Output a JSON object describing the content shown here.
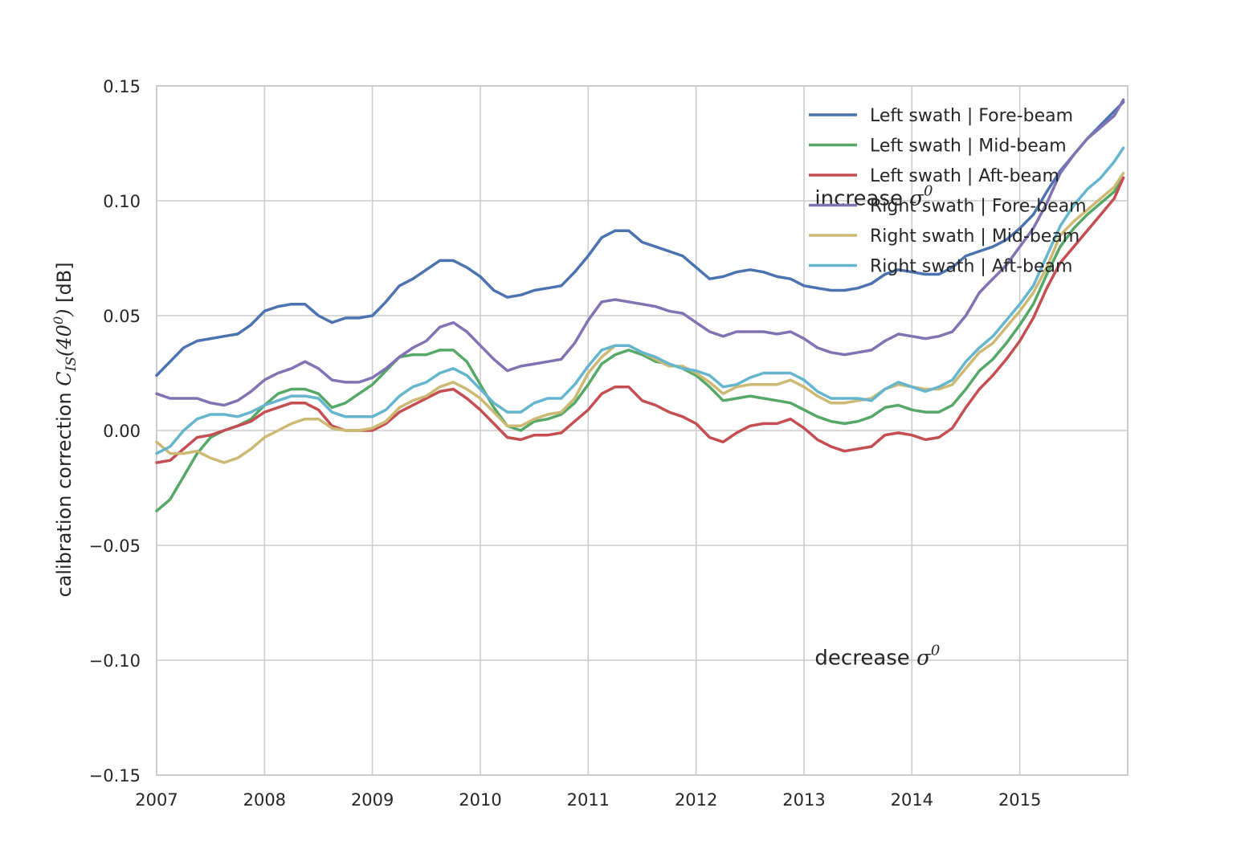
{
  "chart_data": {
    "type": "line",
    "ylabel": {
      "prefix": "calibration correction ",
      "symbol": "C",
      "subscript": "IS",
      "argument": "(40",
      "argument_superscript": "0",
      "argument_close": ")",
      "unit": " [dB]"
    },
    "xlim": [
      2007.0,
      2016.0
    ],
    "ylim": [
      -0.15,
      0.15
    ],
    "x_ticks": [
      2007,
      2008,
      2009,
      2010,
      2011,
      2012,
      2013,
      2014,
      2015
    ],
    "x_tick_labels": [
      "2007",
      "2008",
      "2009",
      "2010",
      "2011",
      "2012",
      "2013",
      "2014",
      "2015"
    ],
    "y_ticks": [
      -0.15,
      -0.1,
      -0.05,
      0.0,
      0.05,
      0.1,
      0.15
    ],
    "y_tick_labels": [
      "−0.15",
      "−0.10",
      "−0.05",
      "0.00",
      "0.05",
      "0.10",
      "0.15"
    ],
    "grid": true,
    "legend_position": "top-right",
    "x": [
      2007.0,
      2007.125,
      2007.25,
      2007.375,
      2007.5,
      2007.625,
      2007.75,
      2007.875,
      2008.0,
      2008.125,
      2008.25,
      2008.375,
      2008.5,
      2008.625,
      2008.75,
      2008.875,
      2009.0,
      2009.125,
      2009.25,
      2009.375,
      2009.5,
      2009.625,
      2009.75,
      2009.875,
      2010.0,
      2010.125,
      2010.25,
      2010.375,
      2010.5,
      2010.625,
      2010.75,
      2010.875,
      2011.0,
      2011.125,
      2011.25,
      2011.375,
      2011.5,
      2011.625,
      2011.75,
      2011.875,
      2012.0,
      2012.125,
      2012.25,
      2012.375,
      2012.5,
      2012.625,
      2012.75,
      2012.875,
      2013.0,
      2013.125,
      2013.25,
      2013.375,
      2013.5,
      2013.625,
      2013.75,
      2013.875,
      2014.0,
      2014.125,
      2014.25,
      2014.375,
      2014.5,
      2014.625,
      2014.75,
      2014.875,
      2015.0,
      2015.125,
      2015.25,
      2015.375,
      2015.5,
      2015.625,
      2015.75,
      2015.875,
      2015.96
    ],
    "series": [
      {
        "name": "Left swath | Fore-beam",
        "color": "#4c72b0",
        "values": [
          0.024,
          0.03,
          0.036,
          0.039,
          0.04,
          0.041,
          0.042,
          0.046,
          0.052,
          0.054,
          0.055,
          0.055,
          0.05,
          0.047,
          0.049,
          0.049,
          0.05,
          0.056,
          0.063,
          0.066,
          0.07,
          0.074,
          0.074,
          0.071,
          0.067,
          0.061,
          0.058,
          0.059,
          0.061,
          0.062,
          0.063,
          0.069,
          0.076,
          0.084,
          0.087,
          0.087,
          0.082,
          0.08,
          0.078,
          0.076,
          0.071,
          0.066,
          0.067,
          0.069,
          0.07,
          0.069,
          0.067,
          0.066,
          0.063,
          0.062,
          0.061,
          0.061,
          0.062,
          0.064,
          0.068,
          0.07,
          0.069,
          0.068,
          0.068,
          0.071,
          0.076,
          0.078,
          0.08,
          0.083,
          0.088,
          0.094,
          0.104,
          0.113,
          0.12,
          0.127,
          0.133,
          0.139,
          0.143
        ]
      },
      {
        "name": "Left swath | Mid-beam",
        "color": "#55a868",
        "values": [
          -0.035,
          -0.03,
          -0.02,
          -0.01,
          -0.003,
          0.0,
          0.002,
          0.005,
          0.011,
          0.016,
          0.018,
          0.018,
          0.016,
          0.01,
          0.012,
          0.016,
          0.02,
          0.026,
          0.032,
          0.033,
          0.033,
          0.035,
          0.035,
          0.03,
          0.02,
          0.01,
          0.002,
          0.0,
          0.004,
          0.005,
          0.007,
          0.012,
          0.02,
          0.029,
          0.033,
          0.035,
          0.033,
          0.03,
          0.029,
          0.027,
          0.024,
          0.019,
          0.013,
          0.014,
          0.015,
          0.014,
          0.013,
          0.012,
          0.009,
          0.006,
          0.004,
          0.003,
          0.004,
          0.006,
          0.01,
          0.011,
          0.009,
          0.008,
          0.008,
          0.011,
          0.018,
          0.026,
          0.031,
          0.038,
          0.046,
          0.055,
          0.068,
          0.08,
          0.088,
          0.094,
          0.099,
          0.104,
          0.11
        ]
      },
      {
        "name": "Left swath | Aft-beam",
        "color": "#c44e52",
        "values": [
          -0.014,
          -0.013,
          -0.008,
          -0.003,
          -0.002,
          0.0,
          0.002,
          0.004,
          0.008,
          0.01,
          0.012,
          0.012,
          0.009,
          0.002,
          0.0,
          0.0,
          0.0,
          0.003,
          0.008,
          0.011,
          0.014,
          0.017,
          0.018,
          0.014,
          0.009,
          0.003,
          -0.003,
          -0.004,
          -0.002,
          -0.002,
          -0.001,
          0.004,
          0.009,
          0.016,
          0.019,
          0.019,
          0.013,
          0.011,
          0.008,
          0.006,
          0.003,
          -0.003,
          -0.005,
          -0.001,
          0.002,
          0.003,
          0.003,
          0.005,
          0.001,
          -0.004,
          -0.007,
          -0.009,
          -0.008,
          -0.007,
          -0.002,
          -0.001,
          -0.002,
          -0.004,
          -0.003,
          0.001,
          0.01,
          0.018,
          0.024,
          0.031,
          0.039,
          0.049,
          0.062,
          0.073,
          0.08,
          0.087,
          0.094,
          0.101,
          0.11
        ]
      },
      {
        "name": "Right swath | Fore-beam",
        "color": "#8172b2",
        "values": [
          0.016,
          0.014,
          0.014,
          0.014,
          0.012,
          0.011,
          0.013,
          0.017,
          0.022,
          0.025,
          0.027,
          0.03,
          0.027,
          0.022,
          0.021,
          0.021,
          0.023,
          0.027,
          0.032,
          0.036,
          0.039,
          0.045,
          0.047,
          0.043,
          0.037,
          0.031,
          0.026,
          0.028,
          0.029,
          0.03,
          0.031,
          0.038,
          0.048,
          0.056,
          0.057,
          0.056,
          0.055,
          0.054,
          0.052,
          0.051,
          0.047,
          0.043,
          0.041,
          0.043,
          0.043,
          0.043,
          0.042,
          0.043,
          0.04,
          0.036,
          0.034,
          0.033,
          0.034,
          0.035,
          0.039,
          0.042,
          0.041,
          0.04,
          0.041,
          0.043,
          0.05,
          0.06,
          0.066,
          0.072,
          0.08,
          0.088,
          0.099,
          0.112,
          0.12,
          0.127,
          0.132,
          0.137,
          0.144
        ]
      },
      {
        "name": "Right swath | Mid-beam",
        "color": "#ccb974",
        "values": [
          -0.005,
          -0.01,
          -0.01,
          -0.009,
          -0.012,
          -0.014,
          -0.012,
          -0.008,
          -0.003,
          0.0,
          0.003,
          0.005,
          0.005,
          0.001,
          0.0,
          0.0,
          0.001,
          0.004,
          0.01,
          0.013,
          0.015,
          0.019,
          0.021,
          0.018,
          0.014,
          0.008,
          0.002,
          0.002,
          0.005,
          0.007,
          0.008,
          0.014,
          0.025,
          0.032,
          0.037,
          0.037,
          0.034,
          0.031,
          0.028,
          0.028,
          0.025,
          0.021,
          0.016,
          0.019,
          0.02,
          0.02,
          0.02,
          0.022,
          0.019,
          0.015,
          0.012,
          0.012,
          0.013,
          0.014,
          0.018,
          0.02,
          0.019,
          0.018,
          0.018,
          0.02,
          0.027,
          0.034,
          0.038,
          0.045,
          0.052,
          0.06,
          0.071,
          0.085,
          0.091,
          0.096,
          0.101,
          0.106,
          0.112
        ]
      },
      {
        "name": "Right swath | Aft-beam",
        "color": "#64b5cd",
        "values": [
          -0.01,
          -0.007,
          0.0,
          0.005,
          0.007,
          0.007,
          0.006,
          0.008,
          0.011,
          0.013,
          0.015,
          0.015,
          0.014,
          0.008,
          0.006,
          0.006,
          0.006,
          0.009,
          0.015,
          0.019,
          0.021,
          0.025,
          0.027,
          0.024,
          0.018,
          0.012,
          0.008,
          0.008,
          0.012,
          0.014,
          0.014,
          0.02,
          0.028,
          0.035,
          0.037,
          0.037,
          0.034,
          0.032,
          0.029,
          0.027,
          0.026,
          0.024,
          0.019,
          0.02,
          0.023,
          0.025,
          0.025,
          0.025,
          0.022,
          0.017,
          0.014,
          0.014,
          0.014,
          0.013,
          0.018,
          0.021,
          0.019,
          0.017,
          0.019,
          0.022,
          0.03,
          0.036,
          0.041,
          0.048,
          0.055,
          0.063,
          0.076,
          0.089,
          0.098,
          0.105,
          0.11,
          0.117,
          0.123
        ]
      }
    ],
    "annotations": [
      {
        "text": "increase ",
        "symbol": "σ",
        "superscript": "0",
        "x": 2013.1,
        "y": 0.098
      },
      {
        "text": "decrease ",
        "symbol": "σ",
        "superscript": "0",
        "x": 2013.1,
        "y": -0.102
      }
    ]
  }
}
